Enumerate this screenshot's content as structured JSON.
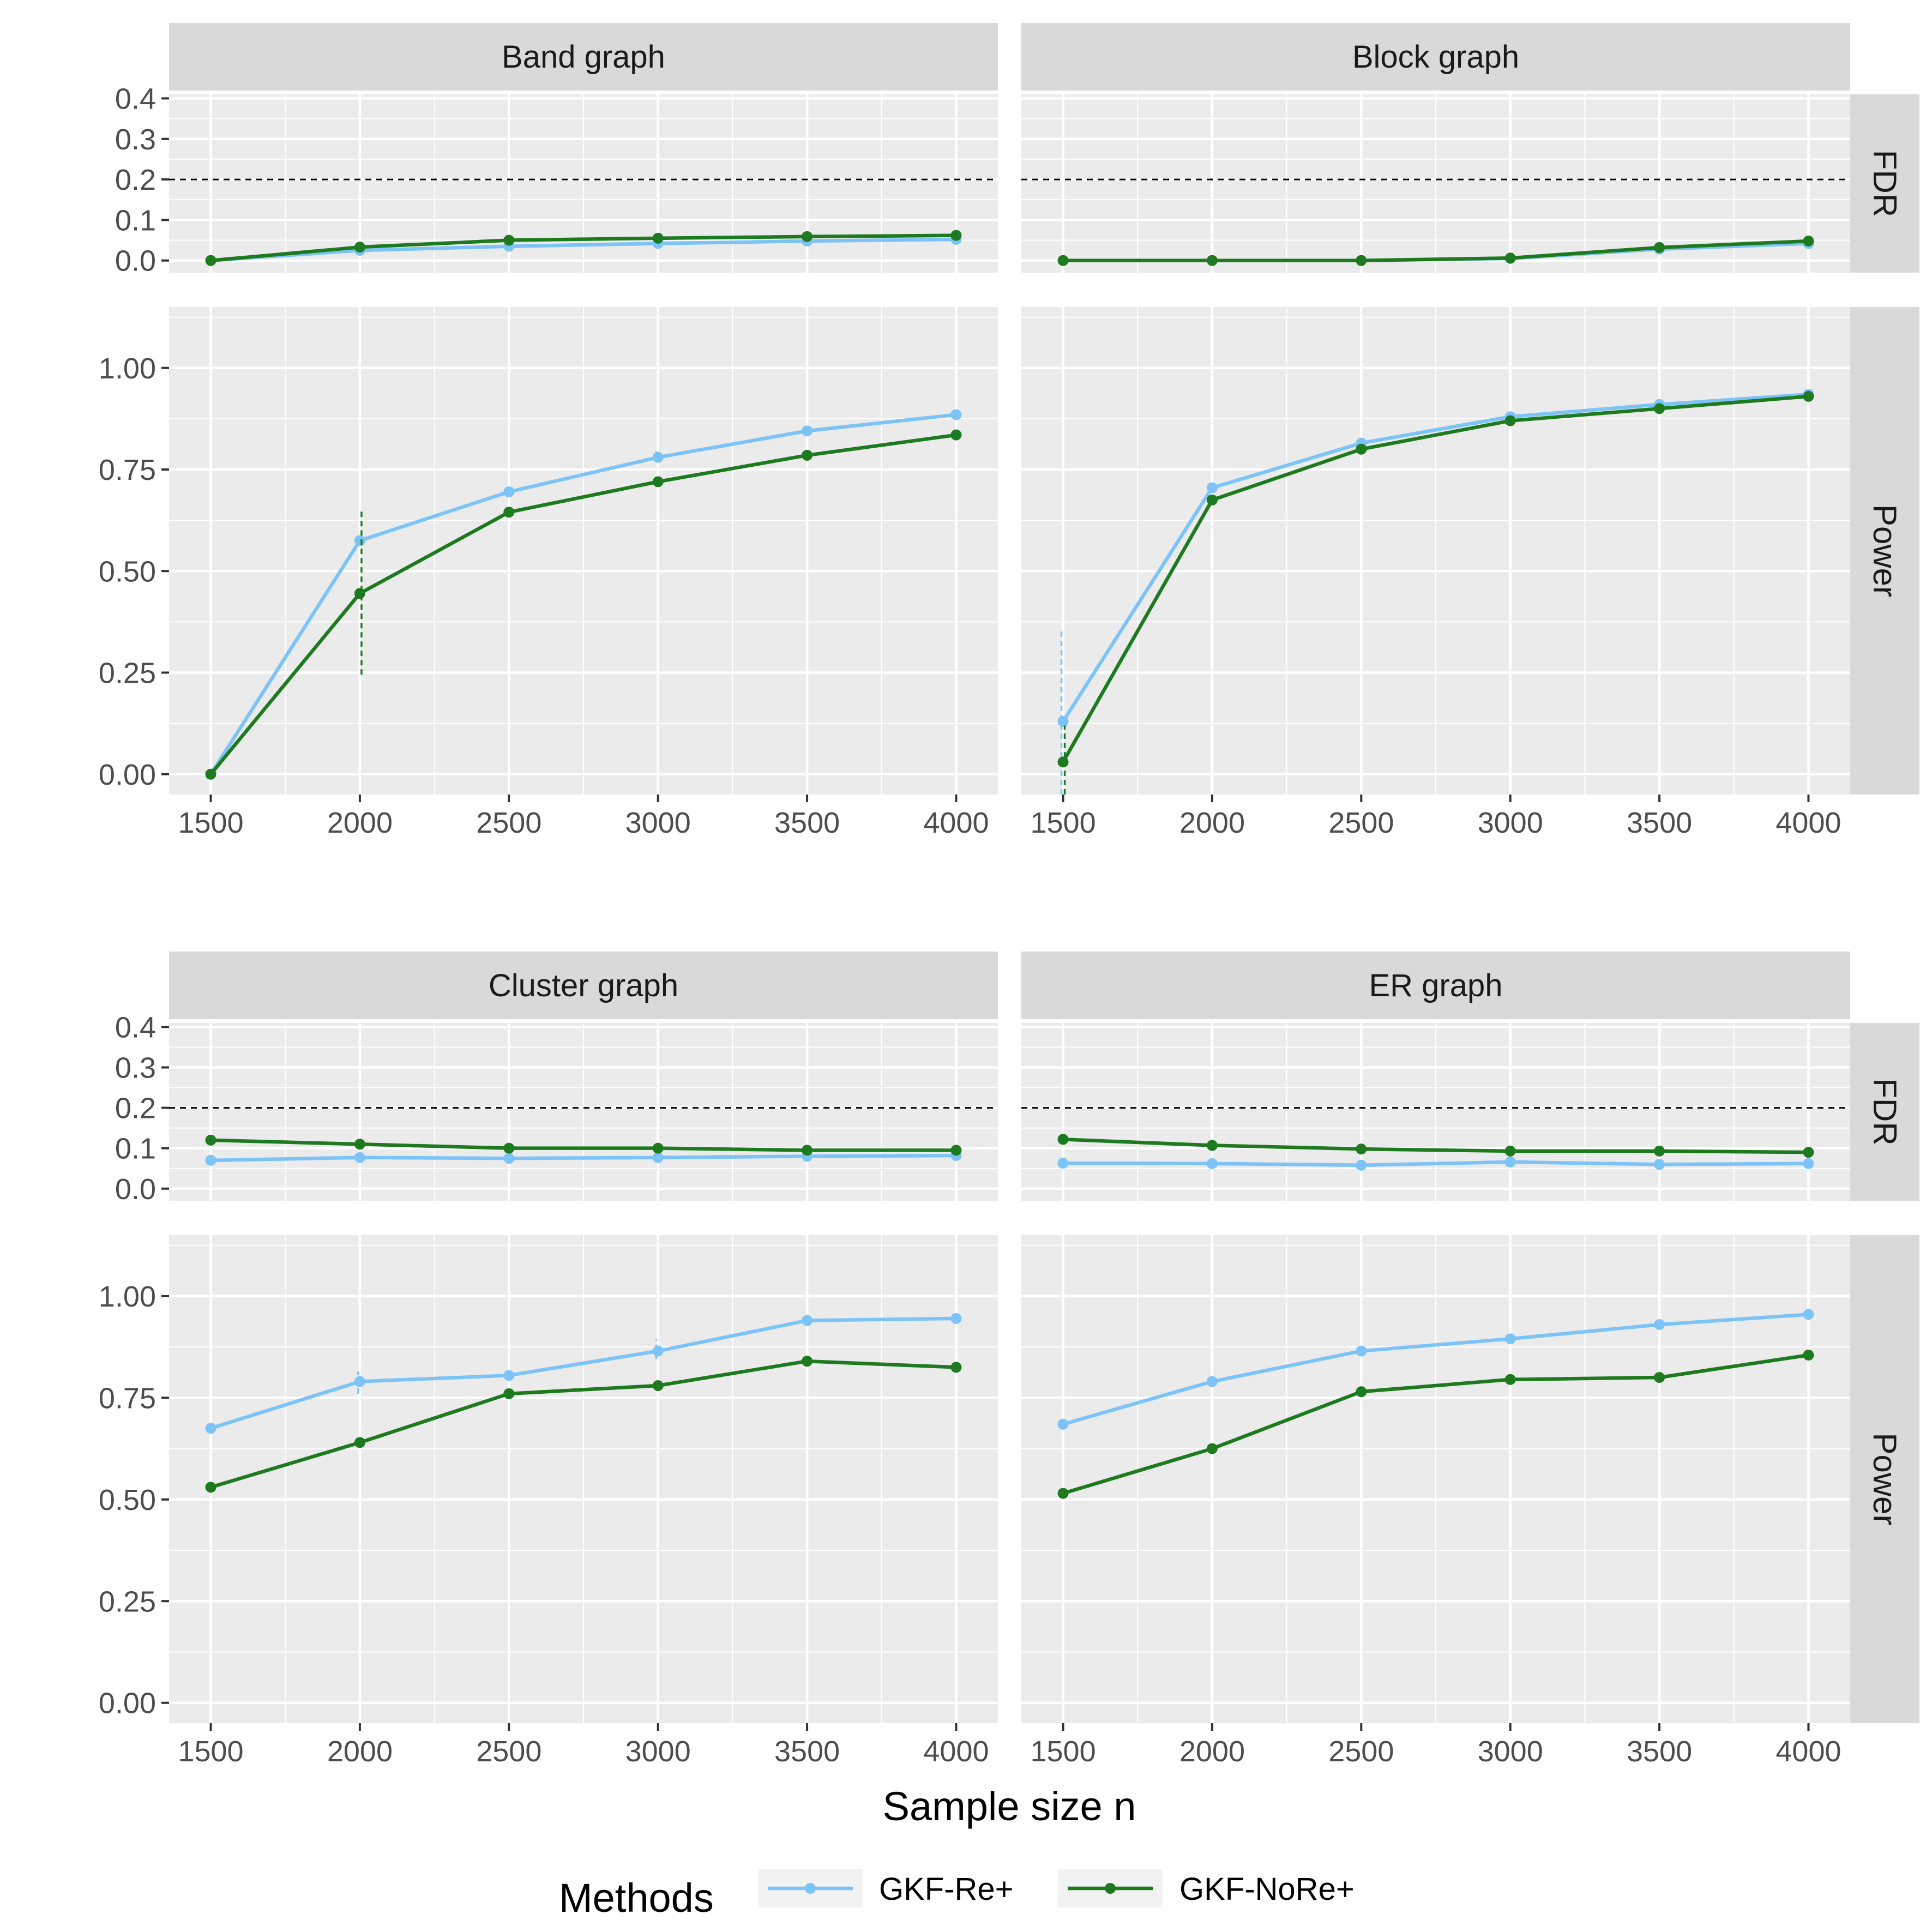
{
  "colors": {
    "gkf_re": "#7CC3F8",
    "gkf_nore": "#1E7A1E",
    "panel_bg": "#EBEBEB",
    "strip_bg": "#D9D9D9",
    "grid": "#FFFFFF",
    "reference_line": "#000000"
  },
  "figure": {
    "xlabel": "Sample size n",
    "legend_title": "Methods",
    "legend_position": "bottom",
    "row_strips": [
      "FDR",
      "Power"
    ],
    "x_ticks": [
      "1500",
      "2000",
      "2500",
      "3000",
      "3500",
      "4000"
    ],
    "fdr_ticks": [
      "0.0",
      "0.1",
      "0.2",
      "0.3",
      "0.4"
    ],
    "power_ticks": [
      "0.00",
      "0.25",
      "0.50",
      "0.75",
      "1.00"
    ]
  },
  "legend": [
    {
      "name": "GKF-Re+",
      "color_key": "gkf_re"
    },
    {
      "name": "GKF-NoRe+",
      "color_key": "gkf_nore"
    }
  ],
  "chart_data": [
    {
      "type": "line",
      "title": "Band graph",
      "x": [
        1500,
        2000,
        2500,
        3000,
        3500,
        4000
      ],
      "fdr": {
        "ylim": [
          -0.03,
          0.41
        ],
        "reference_line": 0.2,
        "series": [
          {
            "name": "GKF-Re+",
            "values": [
              0.0,
              0.025,
              0.035,
              0.042,
              0.048,
              0.052
            ]
          },
          {
            "name": "GKF-NoRe+",
            "values": [
              0.0,
              0.033,
              0.05,
              0.055,
              0.059,
              0.062
            ]
          }
        ]
      },
      "power": {
        "ylim": [
          -0.05,
          1.15
        ],
        "series": [
          {
            "name": "GKF-Re+",
            "values": [
              0.0,
              0.575,
              0.695,
              0.78,
              0.845,
              0.885
            ],
            "error_bars": [
              null,
              [
                0.57,
                0.585
              ],
              null,
              [
                0.77,
                0.795
              ],
              null,
              null
            ]
          },
          {
            "name": "GKF-NoRe+",
            "values": [
              0.0,
              0.445,
              0.645,
              0.72,
              0.785,
              0.835
            ],
            "error_bars": [
              null,
              [
                0.245,
                0.65
              ],
              null,
              null,
              null,
              null
            ]
          }
        ]
      }
    },
    {
      "type": "line",
      "title": "Block graph",
      "x": [
        1500,
        2000,
        2500,
        3000,
        3500,
        4000
      ],
      "fdr": {
        "ylim": [
          -0.03,
          0.41
        ],
        "reference_line": 0.2,
        "series": [
          {
            "name": "GKF-Re+",
            "values": [
              0.0,
              0.0,
              0.0,
              0.005,
              0.028,
              0.042
            ]
          },
          {
            "name": "GKF-NoRe+",
            "values": [
              0.0,
              0.0,
              0.0,
              0.006,
              0.032,
              0.048
            ]
          }
        ]
      },
      "power": {
        "ylim": [
          -0.05,
          1.15
        ],
        "series": [
          {
            "name": "GKF-Re+",
            "values": [
              0.13,
              0.705,
              0.815,
              0.88,
              0.91,
              0.935
            ],
            "error_bars": [
              [
                -0.05,
                0.36
              ],
              null,
              null,
              null,
              null,
              null
            ]
          },
          {
            "name": "GKF-NoRe+",
            "values": [
              0.03,
              0.675,
              0.8,
              0.87,
              0.9,
              0.93
            ],
            "error_bars": [
              [
                -0.05,
                0.12
              ],
              null,
              null,
              null,
              null,
              null
            ]
          }
        ]
      }
    },
    {
      "type": "line",
      "title": "Cluster graph",
      "x": [
        1500,
        2000,
        2500,
        3000,
        3500,
        4000
      ],
      "fdr": {
        "ylim": [
          -0.03,
          0.41
        ],
        "reference_line": 0.2,
        "series": [
          {
            "name": "GKF-Re+",
            "values": [
              0.07,
              0.077,
              0.075,
              0.077,
              0.08,
              0.082
            ]
          },
          {
            "name": "GKF-NoRe+",
            "values": [
              0.12,
              0.11,
              0.1,
              0.1,
              0.095,
              0.095
            ]
          }
        ]
      },
      "power": {
        "ylim": [
          -0.05,
          1.15
        ],
        "series": [
          {
            "name": "GKF-Re+",
            "values": [
              0.675,
              0.79,
              0.805,
              0.865,
              0.94,
              0.945
            ],
            "error_bars": [
              null,
              [
                0.76,
                0.815
              ],
              null,
              [
                0.845,
                0.895
              ],
              null,
              null
            ]
          },
          {
            "name": "GKF-NoRe+",
            "values": [
              0.53,
              0.64,
              0.76,
              0.78,
              0.84,
              0.825
            ],
            "error_bars": [
              null,
              null,
              null,
              null,
              null,
              null
            ]
          }
        ]
      }
    },
    {
      "type": "line",
      "title": "ER graph",
      "x": [
        1500,
        2000,
        2500,
        3000,
        3500,
        4000
      ],
      "fdr": {
        "ylim": [
          -0.03,
          0.41
        ],
        "reference_line": 0.2,
        "series": [
          {
            "name": "GKF-Re+",
            "values": [
              0.063,
              0.062,
              0.058,
              0.066,
              0.06,
              0.062
            ]
          },
          {
            "name": "GKF-NoRe+",
            "values": [
              0.122,
              0.107,
              0.098,
              0.093,
              0.093,
              0.09
            ]
          }
        ]
      },
      "power": {
        "ylim": [
          -0.05,
          1.15
        ],
        "series": [
          {
            "name": "GKF-Re+",
            "values": [
              0.685,
              0.79,
              0.865,
              0.895,
              0.93,
              0.955
            ],
            "error_bars": [
              null,
              null,
              null,
              null,
              null,
              null
            ]
          },
          {
            "name": "GKF-NoRe+",
            "values": [
              0.515,
              0.625,
              0.765,
              0.795,
              0.8,
              0.855
            ],
            "error_bars": [
              null,
              null,
              null,
              null,
              null,
              null
            ]
          }
        ]
      }
    }
  ]
}
